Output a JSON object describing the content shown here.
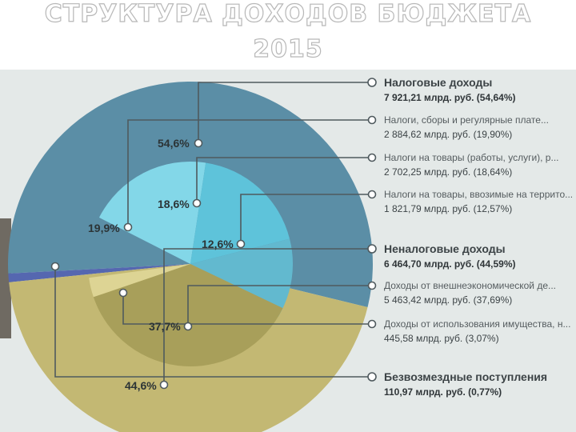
{
  "title_line1": "СТРУКТУРА ДОХОДОВ БЮДЖЕТА",
  "title_line2": "2015",
  "colors": {
    "tax_outer": "#5b8ea6",
    "tax_inner_1": "#83d7e8",
    "tax_inner_2": "#5ec3da",
    "tax_inner_3": "#62b9cf",
    "nontax_outer": "#c3b873",
    "nontax_inner_1": "#a89f5a",
    "nontax_inner_2": "#ddd494",
    "gratis": "#5567b0",
    "connector": "#4f5a5e"
  },
  "chart_data": {
    "type": "pie",
    "title": "СТРУКТУРА ДОХОДОВ БЮДЖЕТА 2015",
    "unit": "млрд. руб.",
    "slices": [
      {
        "label": "Налоговые доходы",
        "value": 7921.21,
        "percent": 54.64,
        "pct_label": "54,6%",
        "value_text": "7 921,21 млрд. руб. (54,64%)",
        "children": [
          {
            "label": "Налоги, сборы и регулярные плате...",
            "value": 2884.62,
            "percent": 19.9,
            "pct_label": "19,9%",
            "value_text": "2 884,62 млрд. руб. (19,90%)"
          },
          {
            "label": "Налоги на товары (работы, услуги), р...",
            "value": 2702.25,
            "percent": 18.64,
            "pct_label": "18,6%",
            "value_text": "2 702,25 млрд. руб. (18,64%)"
          },
          {
            "label": "Налоги на товары, ввозимые на террито...",
            "value": 1821.79,
            "percent": 12.57,
            "pct_label": "12,6%",
            "value_text": "1 821,79 млрд. руб. (12,57%)"
          }
        ]
      },
      {
        "label": "Неналоговые доходы",
        "value": 6464.7,
        "percent": 44.59,
        "pct_label": "44,6%",
        "value_text": "6 464,70 млрд. руб. (44,59%)",
        "children": [
          {
            "label": "Доходы от внешнеэкономической де...",
            "value": 5463.42,
            "percent": 37.69,
            "pct_label": "37,7%",
            "value_text": "5 463,42 млрд. руб. (37,69%)"
          },
          {
            "label": "Доходы от использования имущества, н...",
            "value": 445.58,
            "percent": 3.07,
            "pct_label": "",
            "value_text": "445,58 млрд. руб. (3,07%)"
          }
        ]
      },
      {
        "label": "Безвозмездные поступления",
        "value": 110.97,
        "percent": 0.77,
        "pct_label": "",
        "value_text": "110,97 млрд. руб. (0,77%)",
        "children": []
      }
    ]
  }
}
